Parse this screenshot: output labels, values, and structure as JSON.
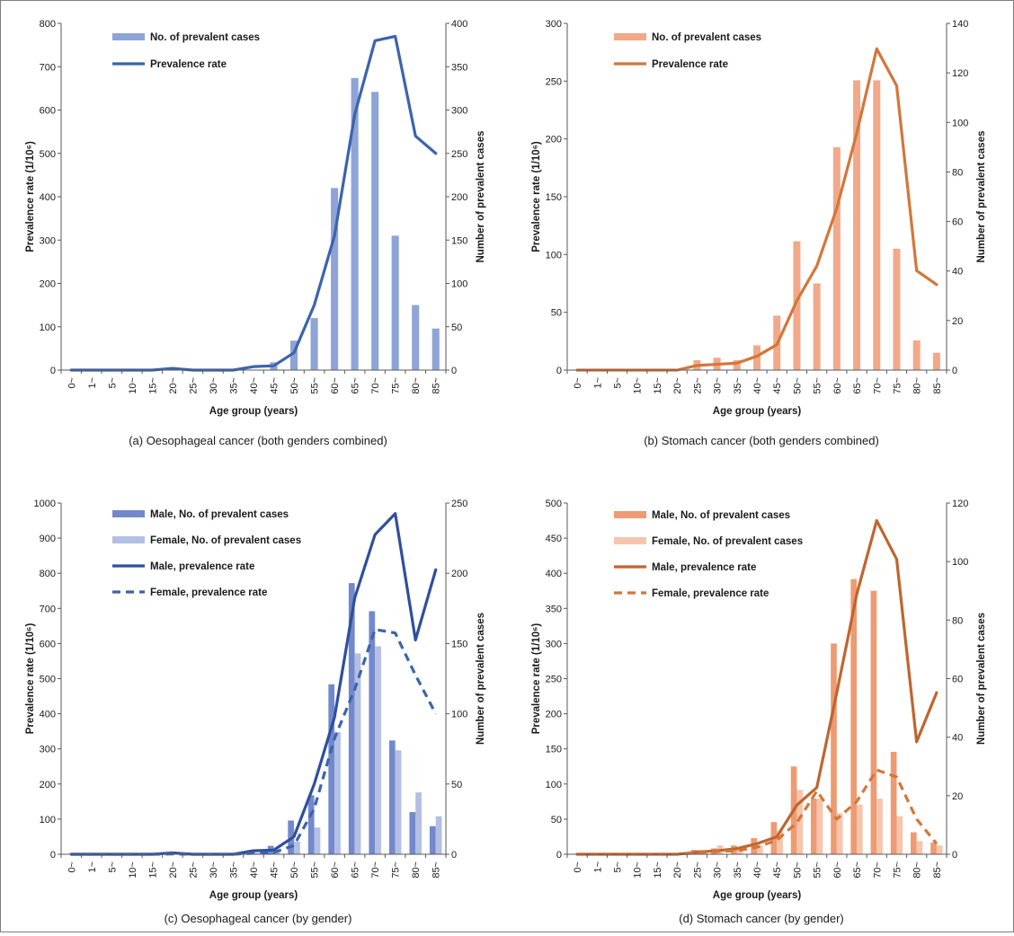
{
  "chart_data": [
    {
      "id": "a",
      "type": "bar+line",
      "caption": "(a) Oesophageal cancer (both genders combined)",
      "xlabel": "Age group (years)",
      "ylabel_left": "Prevalence rate (1/10⁶)",
      "ylabel_right": "Number of prevalent cases",
      "categories": [
        "0~",
        "1~",
        "5~",
        "10~",
        "15~",
        "20~",
        "25~",
        "30~",
        "35~",
        "40~",
        "45~",
        "50~",
        "55~",
        "60~",
        "65~",
        "70~",
        "75~",
        "80~",
        "85~"
      ],
      "ylim_left": [
        0,
        800
      ],
      "yticks_left": [
        0,
        100,
        200,
        300,
        400,
        500,
        600,
        700,
        800
      ],
      "ylim_right": [
        0,
        400
      ],
      "yticks_right": [
        0,
        50,
        100,
        150,
        200,
        250,
        300,
        350,
        400
      ],
      "bar_series": [
        {
          "name": "No. of prevalent cases",
          "color": "#8fa4d6",
          "values": [
            0,
            0,
            0,
            0,
            0,
            0,
            0,
            0,
            0,
            0,
            9,
            34,
            60,
            210,
            337,
            321,
            155,
            75,
            48
          ]
        }
      ],
      "line_series": [
        {
          "name": "Prevalence rate",
          "color": "#3c64ad",
          "dashed": false,
          "values": [
            0,
            0,
            0,
            0,
            0,
            4,
            0,
            0,
            0,
            8,
            10,
            40,
            150,
            310,
            590,
            760,
            770,
            540,
            500
          ]
        }
      ],
      "legend": {
        "position": "top-left"
      }
    },
    {
      "id": "b",
      "type": "bar+line",
      "caption": "(b) Stomach cancer (both genders combined)",
      "xlabel": "Age group (years)",
      "ylabel_left": "Prevalence rate (1/10⁶)",
      "ylabel_right": "Number of prevalent cases",
      "categories": [
        "0~",
        "1~",
        "5~",
        "10~",
        "15~",
        "20~",
        "25~",
        "30~",
        "35~",
        "40~",
        "45~",
        "50~",
        "55~",
        "60~",
        "65~",
        "70~",
        "75~",
        "80~",
        "85~"
      ],
      "ylim_left": [
        0,
        300
      ],
      "yticks_left": [
        0,
        50,
        100,
        150,
        200,
        250,
        300
      ],
      "ylim_right": [
        0,
        140
      ],
      "yticks_right": [
        0,
        20,
        40,
        60,
        80,
        100,
        120,
        140
      ],
      "bar_series": [
        {
          "name": "No. of prevalent cases",
          "color": "#f1a98a",
          "values": [
            0,
            0,
            0,
            0,
            0,
            0,
            4,
            5,
            4,
            10,
            22,
            52,
            35,
            90,
            117,
            117,
            49,
            12,
            7
          ]
        }
      ],
      "line_series": [
        {
          "name": "Prevalence rate",
          "color": "#d2773a",
          "dashed": false,
          "values": [
            0,
            0,
            0,
            0,
            0,
            0,
            4,
            5,
            6,
            12,
            22,
            60,
            90,
            140,
            205,
            278,
            246,
            86,
            74
          ]
        }
      ],
      "legend": {
        "position": "top-left"
      }
    },
    {
      "id": "c",
      "type": "bar+line",
      "caption": "(c) Oesophageal cancer (by gender)",
      "xlabel": "Age group (years)",
      "ylabel_left": "Prevalence rate (1/10⁶)",
      "ylabel_right": "Number of prevalent cases",
      "categories": [
        "0~",
        "1~",
        "5~",
        "10~",
        "15~",
        "20~",
        "25~",
        "30~",
        "35~",
        "40~",
        "45~",
        "50~",
        "55~",
        "60~",
        "65~",
        "70~",
        "75~",
        "80~",
        "85~"
      ],
      "ylim_left": [
        0,
        1000
      ],
      "yticks_left": [
        0,
        100,
        200,
        300,
        400,
        500,
        600,
        700,
        800,
        900,
        1000
      ],
      "ylim_right": [
        0,
        250
      ],
      "yticks_right": [
        0,
        50,
        100,
        150,
        200,
        250
      ],
      "bar_series": [
        {
          "name": "Male, No. of prevalent cases",
          "color": "#7389cc",
          "values": [
            0,
            0,
            0,
            0,
            0,
            0,
            0,
            0,
            0,
            3,
            6,
            24,
            42,
            121,
            193,
            173,
            81,
            30,
            20
          ]
        },
        {
          "name": "Female, No. of prevalent cases",
          "color": "#b3bfe3",
          "values": [
            0,
            0,
            0,
            0,
            0,
            0,
            0,
            0,
            0,
            1,
            3,
            9,
            19,
            87,
            143,
            148,
            74,
            44,
            27
          ]
        }
      ],
      "line_series": [
        {
          "name": "Male, prevalence rate",
          "color": "#2f4f9c",
          "dashed": false,
          "values": [
            0,
            0,
            0,
            0,
            0,
            4,
            0,
            0,
            0,
            10,
            12,
            50,
            200,
            390,
            730,
            910,
            970,
            610,
            810
          ]
        },
        {
          "name": "Female, prevalence rate",
          "color": "#3c64ad",
          "dashed": true,
          "values": [
            0,
            0,
            0,
            0,
            0,
            1,
            0,
            0,
            0,
            3,
            5,
            25,
            130,
            330,
            470,
            640,
            630,
            510,
            400
          ]
        }
      ],
      "legend": {
        "position": "top-left"
      }
    },
    {
      "id": "d",
      "type": "bar+line",
      "caption": "(d) Stomach cancer (by gender)",
      "xlabel": "Age group (years)",
      "ylabel_left": "Prevalence rate (1/10⁶)",
      "ylabel_right": "Number of prevalent cases",
      "categories": [
        "0~",
        "1~",
        "5~",
        "10~",
        "15~",
        "20~",
        "25~",
        "30~",
        "35~",
        "40~",
        "45~",
        "50~",
        "55~",
        "60~",
        "65~",
        "70~",
        "75~",
        "80~",
        "85~"
      ],
      "ylim_left": [
        0,
        500
      ],
      "yticks_left": [
        0,
        50,
        100,
        150,
        200,
        250,
        300,
        350,
        400,
        450,
        500
      ],
      "ylim_right": [
        0,
        120
      ],
      "yticks_right": [
        0,
        20,
        40,
        60,
        80,
        100,
        120
      ],
      "bar_series": [
        {
          "name": "Male, No. of prevalent cases",
          "color": "#ee9a72",
          "values": [
            0,
            0,
            0,
            0,
            0,
            0,
            1.5,
            2,
            3,
            5.5,
            11,
            30,
            19,
            72,
            94,
            90,
            35,
            7.5,
            4
          ]
        },
        {
          "name": "Female, No. of prevalent cases",
          "color": "#f6c5ad",
          "values": [
            0,
            0,
            0,
            0,
            0,
            0,
            1.5,
            3,
            2,
            3,
            8,
            22,
            19,
            14,
            17,
            19,
            13,
            4.5,
            3
          ]
        }
      ],
      "line_series": [
        {
          "name": "Male, prevalence rate",
          "color": "#c0652e",
          "dashed": false,
          "values": [
            0,
            0,
            0,
            0,
            0,
            0,
            3,
            5,
            8,
            15,
            25,
            70,
            95,
            230,
            370,
            475,
            420,
            160,
            230
          ]
        },
        {
          "name": "Female, prevalence rate",
          "color": "#d2773a",
          "dashed": true,
          "values": [
            0,
            0,
            0,
            0,
            0,
            0,
            2,
            4,
            5,
            10,
            20,
            45,
            90,
            50,
            75,
            120,
            110,
            50,
            15
          ]
        }
      ],
      "legend": {
        "position": "top-left"
      }
    }
  ]
}
